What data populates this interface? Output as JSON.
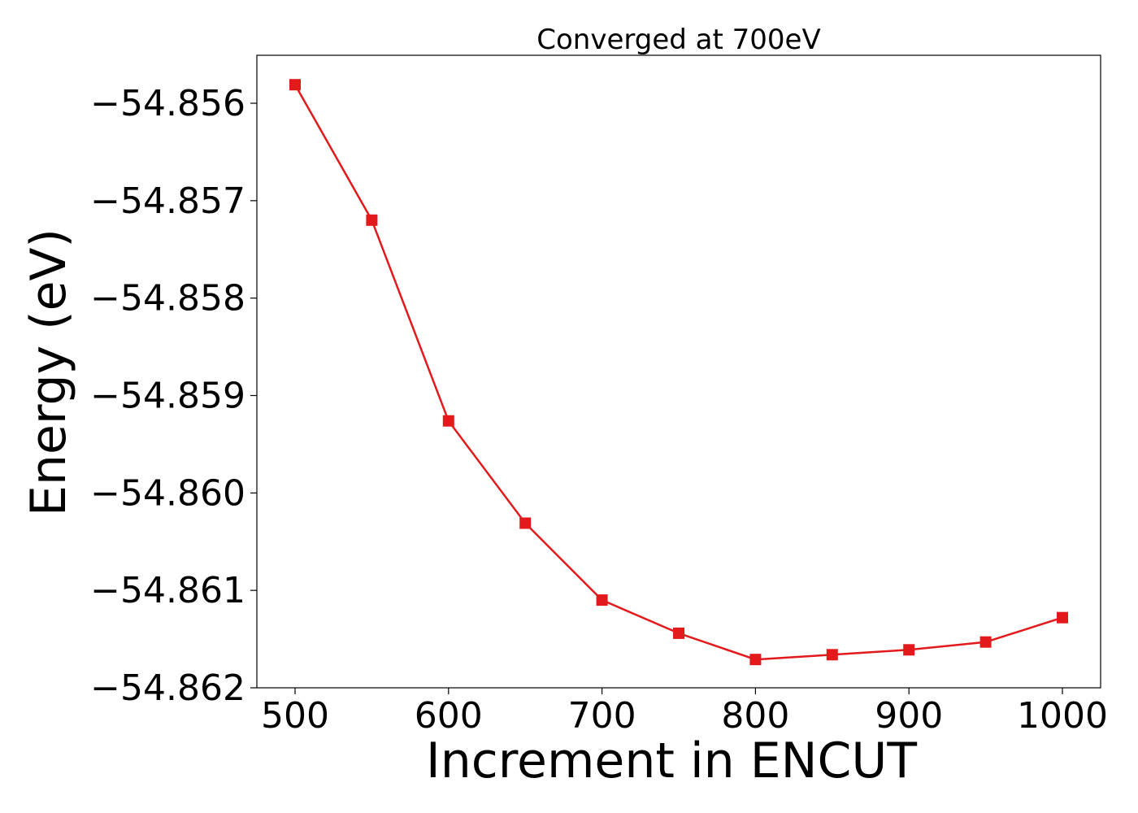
{
  "chart_data": {
    "type": "line",
    "title": "Converged at 700eV",
    "xlabel": "Increment in ENCUT",
    "ylabel": "Energy (eV)",
    "x": [
      500,
      550,
      600,
      650,
      700,
      750,
      800,
      850,
      900,
      950,
      1000
    ],
    "series": [
      {
        "color": "#e31a1c",
        "marker": "square",
        "values": [
          -54.85581,
          -54.8572,
          -54.85926,
          -54.86031,
          -54.8611,
          -54.86144,
          -54.86171,
          -54.86166,
          -54.86161,
          -54.86153,
          -54.86128
        ]
      }
    ],
    "xlim": [
      475,
      1025
    ],
    "ylim": [
      -54.862,
      -54.8555
    ],
    "xticks": [
      500,
      600,
      700,
      800,
      900,
      1000
    ],
    "xtick_labels": [
      "500",
      "600",
      "700",
      "800",
      "900",
      "1000"
    ],
    "yticks": [
      -54.856,
      -54.857,
      -54.858,
      -54.859,
      -54.86,
      -54.861,
      -54.862
    ],
    "ytick_labels": [
      "−54.856",
      "−54.857",
      "−54.858",
      "−54.859",
      "−54.860",
      "−54.861",
      "−54.862"
    ],
    "grid": false,
    "legend": "none"
  }
}
